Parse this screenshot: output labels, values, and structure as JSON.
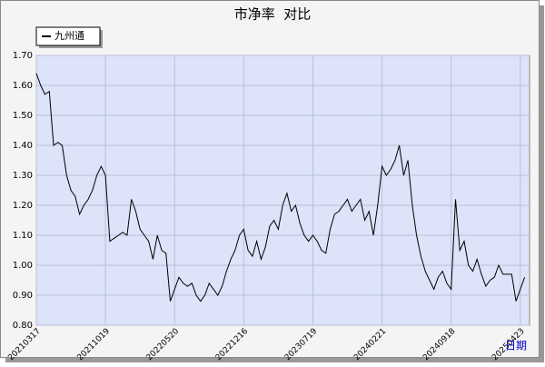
{
  "chart_data": {
    "type": "line",
    "title": "市净率  对比",
    "x_label": "日期",
    "categories": [
      "20210317",
      null,
      null,
      null,
      null,
      null,
      null,
      null,
      null,
      null,
      null,
      null,
      null,
      null,
      null,
      null,
      "20211019",
      null,
      null,
      null,
      null,
      null,
      null,
      null,
      null,
      null,
      null,
      null,
      null,
      null,
      null,
      null,
      "20220520",
      null,
      null,
      null,
      null,
      null,
      null,
      null,
      null,
      null,
      null,
      null,
      null,
      null,
      null,
      null,
      "20221216",
      null,
      null,
      null,
      null,
      null,
      null,
      null,
      null,
      null,
      null,
      null,
      null,
      null,
      null,
      null,
      "20230719",
      null,
      null,
      null,
      null,
      null,
      null,
      null,
      null,
      null,
      null,
      null,
      null,
      null,
      null,
      null,
      "20240221",
      null,
      null,
      null,
      null,
      null,
      null,
      null,
      null,
      null,
      null,
      null,
      null,
      null,
      null,
      null,
      "20240918",
      null,
      null,
      null,
      null,
      null,
      null,
      null,
      null,
      null,
      null,
      null,
      null,
      null,
      null,
      null,
      "20250423",
      null
    ],
    "series": [
      {
        "name": "九州通",
        "color": "#000000",
        "values": [
          1.64,
          1.6,
          1.57,
          1.58,
          1.4,
          1.41,
          1.4,
          1.3,
          1.25,
          1.23,
          1.17,
          1.2,
          1.22,
          1.25,
          1.3,
          1.33,
          1.3,
          1.08,
          1.09,
          1.1,
          1.11,
          1.1,
          1.22,
          1.18,
          1.12,
          1.1,
          1.08,
          1.02,
          1.1,
          1.05,
          1.04,
          0.88,
          0.92,
          0.96,
          0.94,
          0.93,
          0.94,
          0.9,
          0.88,
          0.9,
          0.94,
          0.92,
          0.9,
          0.93,
          0.98,
          1.02,
          1.05,
          1.1,
          1.12,
          1.05,
          1.03,
          1.08,
          1.02,
          1.06,
          1.13,
          1.15,
          1.12,
          1.2,
          1.24,
          1.18,
          1.2,
          1.14,
          1.1,
          1.08,
          1.1,
          1.08,
          1.05,
          1.04,
          1.12,
          1.17,
          1.18,
          1.2,
          1.22,
          1.18,
          1.2,
          1.22,
          1.15,
          1.18,
          1.1,
          1.2,
          1.33,
          1.3,
          1.32,
          1.35,
          1.4,
          1.3,
          1.35,
          1.2,
          1.1,
          1.03,
          0.98,
          0.95,
          0.92,
          0.96,
          0.98,
          0.94,
          0.92,
          1.22,
          1.05,
          1.08,
          1.0,
          0.98,
          1.02,
          0.97,
          0.93,
          0.95,
          0.96,
          1.0,
          0.97,
          0.97,
          0.97,
          0.88,
          0.92,
          0.96
        ]
      }
    ],
    "ylim": [
      0.8,
      1.7
    ],
    "yticks": [
      {
        "value": 0.8,
        "label": "0.80"
      },
      {
        "value": 0.9,
        "label": "0.90"
      },
      {
        "value": 1.0,
        "label": "1.00"
      },
      {
        "value": 1.1,
        "label": "1.10"
      },
      {
        "value": 1.2,
        "label": "1.20"
      },
      {
        "value": 1.3,
        "label": "1.30"
      },
      {
        "value": 1.4,
        "label": "1.40"
      },
      {
        "value": 1.5,
        "label": "1.50"
      },
      {
        "value": 1.6,
        "label": "1.60"
      },
      {
        "value": 1.7,
        "label": "1.70"
      }
    ],
    "grid": true,
    "legend": "top-left"
  }
}
